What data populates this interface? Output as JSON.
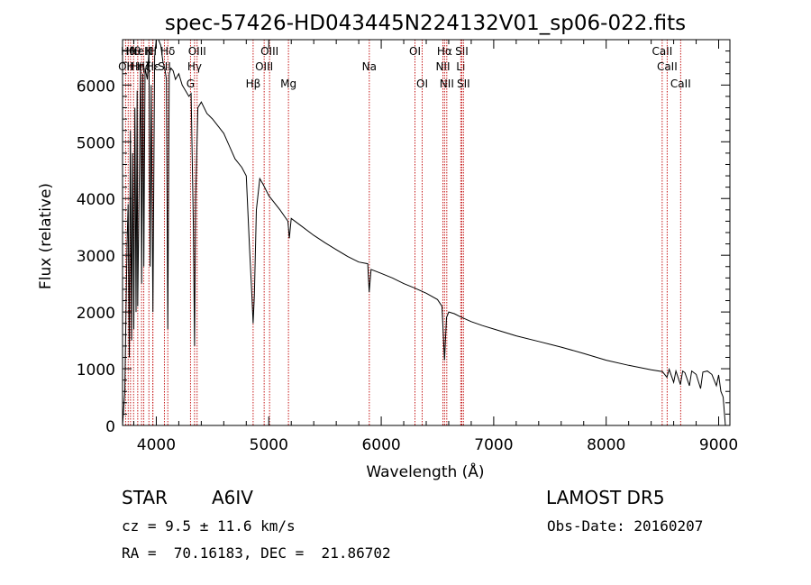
{
  "chart_data": {
    "type": "line",
    "title": "spec-57426-HD043445N224132V01_sp06-022.fits",
    "xlabel": "Wavelength (Å)",
    "ylabel": "Flux (relative)",
    "xlim": [
      3700,
      9100
    ],
    "ylim": [
      0,
      6800
    ],
    "xticks": [
      4000,
      5000,
      6000,
      7000,
      8000,
      9000
    ],
    "yticks": [
      0,
      1000,
      2000,
      3000,
      4000,
      5000,
      6000
    ],
    "grid": false,
    "series": [
      {
        "x": [
          3700,
          3720,
          3740,
          3750,
          3760,
          3770,
          3780,
          3790,
          3800,
          3810,
          3820,
          3830,
          3835,
          3850,
          3860,
          3870,
          3880,
          3889,
          3900,
          3920,
          3935,
          3945,
          3955,
          3970,
          3985,
          4000,
          4020,
          4040,
          4060,
          4075,
          4090,
          4102,
          4115,
          4130,
          4150,
          4170,
          4200,
          4230,
          4260,
          4290,
          4310,
          4330,
          4340,
          4350,
          4370,
          4400,
          4450,
          4500,
          4600,
          4700,
          4760,
          4800,
          4830,
          4850,
          4861,
          4872,
          4890,
          4920,
          4950,
          5000,
          5100,
          5170,
          5183,
          5200,
          5300,
          5400,
          5500,
          5600,
          5700,
          5800,
          5880,
          5893,
          5910,
          6000,
          6100,
          6200,
          6300,
          6400,
          6500,
          6540,
          6563,
          6580,
          6600,
          6650,
          6700,
          6800,
          6900,
          7000,
          7200,
          7400,
          7600,
          7800,
          8000,
          8200,
          8400,
          8500,
          8540,
          8560,
          8600,
          8620,
          8660,
          8680,
          8700,
          8740,
          8760,
          8800,
          8840,
          8860,
          8900,
          8940,
          8980,
          9000,
          9020,
          9040,
          9060
        ],
        "y": [
          0,
          600,
          3200,
          3900,
          1200,
          5200,
          1500,
          4800,
          1700,
          5600,
          2000,
          5900,
          2100,
          4500,
          6400,
          2500,
          6200,
          2800,
          6300,
          6100,
          6600,
          2800,
          6000,
          2000,
          6500,
          6800,
          6800,
          6700,
          6400,
          6300,
          6100,
          1700,
          6200,
          6300,
          6250,
          6100,
          6200,
          6000,
          5900,
          5800,
          5850,
          3500,
          1400,
          4000,
          5600,
          5700,
          5500,
          5400,
          5150,
          4700,
          4550,
          4400,
          3100,
          2300,
          1800,
          2300,
          3800,
          4350,
          4250,
          4050,
          3800,
          3600,
          3300,
          3650,
          3500,
          3350,
          3220,
          3100,
          2980,
          2880,
          2850,
          2350,
          2750,
          2680,
          2600,
          2500,
          2420,
          2330,
          2220,
          2100,
          1150,
          1900,
          2000,
          1970,
          1920,
          1830,
          1760,
          1700,
          1580,
          1480,
          1380,
          1270,
          1150,
          1060,
          980,
          950,
          850,
          990,
          760,
          960,
          720,
          960,
          930,
          700,
          960,
          900,
          650,
          940,
          960,
          900,
          700,
          890,
          600,
          500,
          0
        ]
      }
    ],
    "lines": [
      {
        "x": 3727,
        "label": "OII",
        "row": 2
      },
      {
        "x": 3750,
        "label": "Hθ",
        "row": 1
      },
      {
        "x": 3771,
        "label": "H",
        "row": 2
      },
      {
        "x": 3798,
        "label": "Hθ",
        "row": 1
      },
      {
        "x": 3835,
        "label": "Hη",
        "row": 2
      },
      {
        "x": 3869,
        "label": "NeIII",
        "row": 1
      },
      {
        "x": 3889,
        "label": "Hζ",
        "row": 2
      },
      {
        "x": 3934,
        "label": "K",
        "row": 1
      },
      {
        "x": 3969,
        "label": "H",
        "row": 1
      },
      {
        "x": 3970,
        "label": "Hε",
        "row": 2
      },
      {
        "x": 4072,
        "label": "SII",
        "row": 2
      },
      {
        "x": 4102,
        "label": "Hδ",
        "row": 1
      },
      {
        "x": 4304,
        "label": "G",
        "row": 3
      },
      {
        "x": 4340,
        "label": "Hγ",
        "row": 2
      },
      {
        "x": 4363,
        "label": "OIII",
        "row": 1
      },
      {
        "x": 4861,
        "label": "Hβ",
        "row": 3
      },
      {
        "x": 4959,
        "label": "OIII",
        "row": 2
      },
      {
        "x": 5007,
        "label": "OIII",
        "row": 1
      },
      {
        "x": 5175,
        "label": "Mg",
        "row": 3
      },
      {
        "x": 5894,
        "label": "Na",
        "row": 2
      },
      {
        "x": 6300,
        "label": "OI",
        "row": 1
      },
      {
        "x": 6364,
        "label": "OI",
        "row": 3
      },
      {
        "x": 6548,
        "label": "NII",
        "row": 2
      },
      {
        "x": 6563,
        "label": "Hα",
        "row": 1
      },
      {
        "x": 6583,
        "label": "NII",
        "row": 3
      },
      {
        "x": 6707,
        "label": "Li",
        "row": 2
      },
      {
        "x": 6716,
        "label": "SII",
        "row": 1
      },
      {
        "x": 6731,
        "label": "SII",
        "row": 3
      },
      {
        "x": 8498,
        "label": "CaII",
        "row": 1
      },
      {
        "x": 8542,
        "label": "CaII",
        "row": 2
      },
      {
        "x": 8662,
        "label": "CaII",
        "row": 3
      }
    ]
  },
  "info": {
    "class_label": "STAR",
    "subclass": "A6IV",
    "survey": "LAMOST DR5",
    "cz": "cz = 9.5 ± 11.6 km/s",
    "obs_date": "Obs-Date: 20160207",
    "coords": "RA =  70.16183, DEC =  21.86702"
  }
}
